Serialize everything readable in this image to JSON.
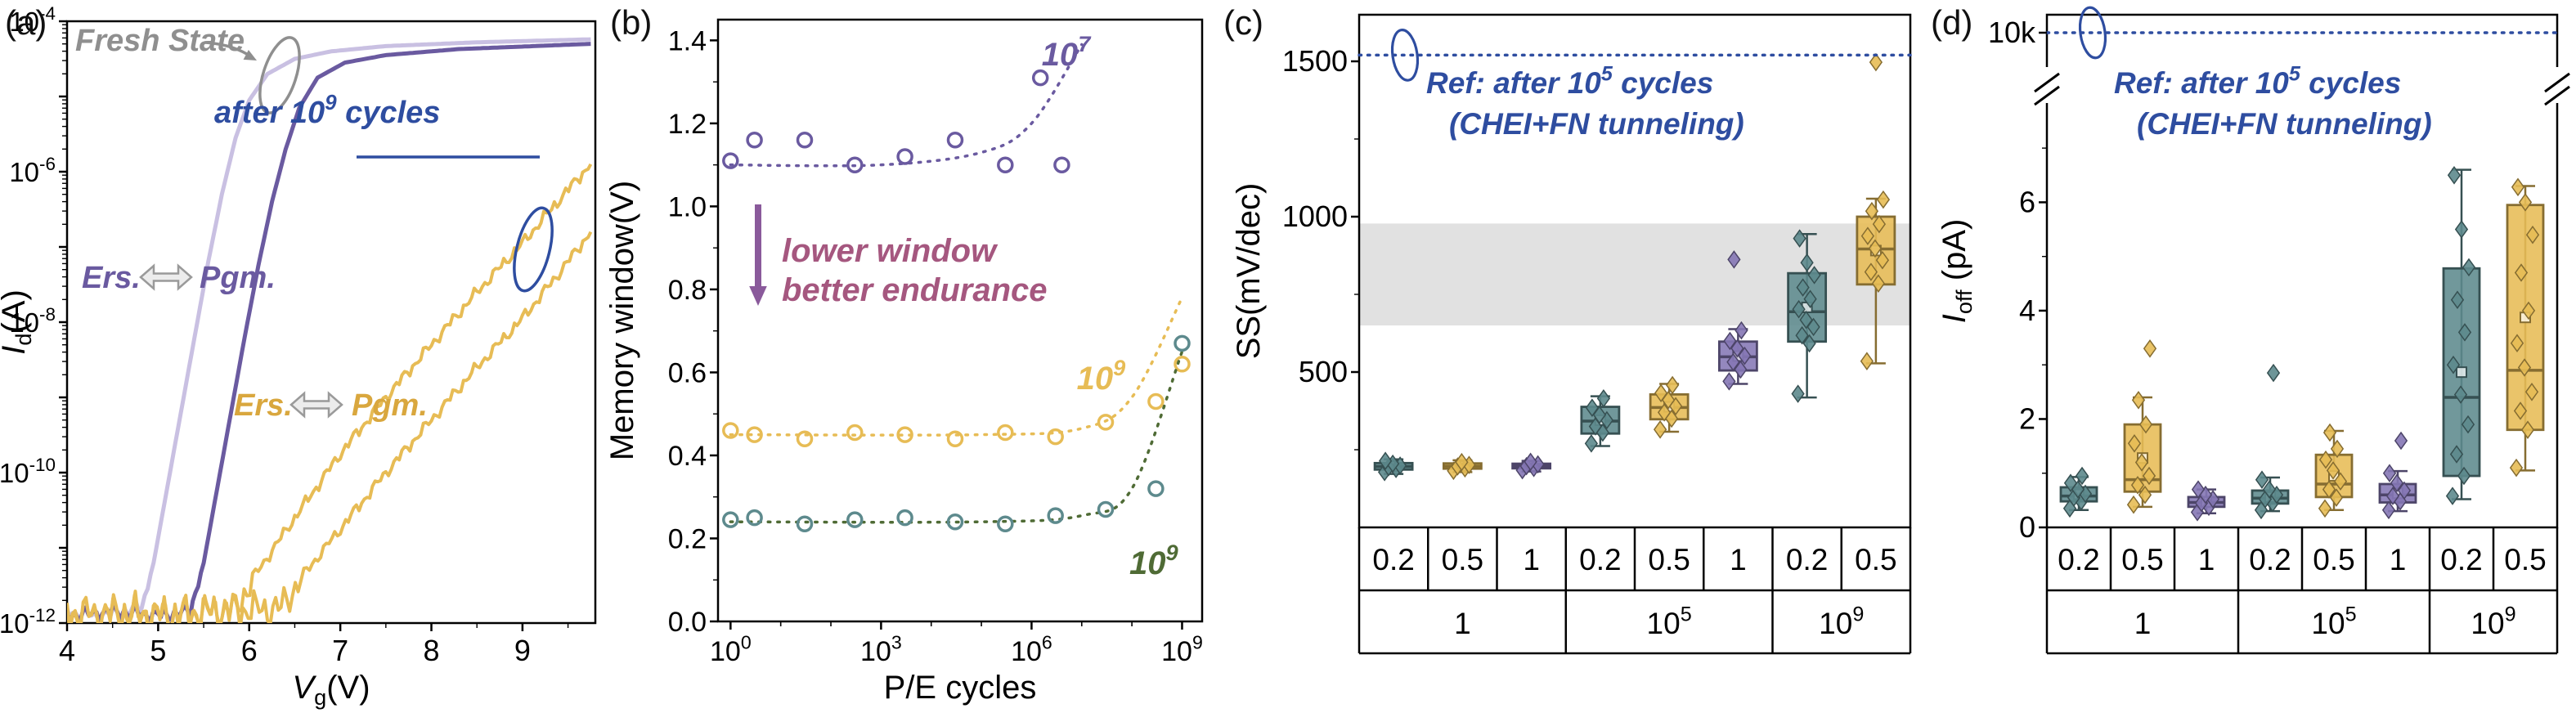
{
  "colors": {
    "purple_light": "#c9c0e2",
    "purple": "#6a5aa0",
    "purple_box": "#8577b5",
    "yellow": "#e7bc55",
    "yellow_dark": "#d9a73e",
    "teal": "#5d8a8d",
    "green_dark": "#4f6b35",
    "magenta": "#a5577f",
    "arrow_purple": "#8a5a9b",
    "blue": "#2e4da0",
    "gray": "#8f8f8f",
    "band_gray": "#dcdcdc"
  },
  "chart_data": [
    {
      "id": "a",
      "type": "line",
      "label": "(a)",
      "xlabel": "*V*_{g}(V)",
      "ylabel": "*I*_{d}(A)",
      "xlim": [
        4,
        9.8
      ],
      "xticks": [
        4,
        5,
        6,
        7,
        8,
        9
      ],
      "ylog_range": [
        -12,
        -4
      ],
      "yticks_labeled": [
        -4,
        -6,
        -8,
        -10,
        -12
      ],
      "series": [
        {
          "name": "fresh-erase",
          "color": "purple_light",
          "width": 5,
          "noise": "low",
          "points": [
            [
              4.0,
              -11.85
            ],
            [
              4.3,
              -11.9
            ],
            [
              4.6,
              -11.85
            ],
            [
              4.82,
              -11.8
            ],
            [
              4.95,
              -11.2
            ],
            [
              5.1,
              -10.2
            ],
            [
              5.25,
              -9.2
            ],
            [
              5.4,
              -8.2
            ],
            [
              5.55,
              -7.2
            ],
            [
              5.7,
              -6.3
            ],
            [
              5.85,
              -5.55
            ],
            [
              6.0,
              -5.05
            ],
            [
              6.2,
              -4.7
            ],
            [
              6.5,
              -4.5
            ],
            [
              6.9,
              -4.4
            ],
            [
              7.5,
              -4.33
            ],
            [
              8.5,
              -4.28
            ],
            [
              9.75,
              -4.24
            ]
          ]
        },
        {
          "name": "fresh-program",
          "color": "purple",
          "width": 5,
          "noise": "low",
          "points": [
            [
              4.0,
              -11.9
            ],
            [
              4.5,
              -11.85
            ],
            [
              5.0,
              -11.9
            ],
            [
              5.35,
              -11.85
            ],
            [
              5.5,
              -11.2
            ],
            [
              5.65,
              -10.2
            ],
            [
              5.8,
              -9.2
            ],
            [
              5.95,
              -8.2
            ],
            [
              6.1,
              -7.25
            ],
            [
              6.25,
              -6.4
            ],
            [
              6.4,
              -5.7
            ],
            [
              6.55,
              -5.15
            ],
            [
              6.75,
              -4.75
            ],
            [
              7.05,
              -4.55
            ],
            [
              7.5,
              -4.45
            ],
            [
              8.3,
              -4.37
            ],
            [
              9.75,
              -4.3
            ]
          ]
        },
        {
          "name": "after-1e9-erase",
          "color": "yellow",
          "width": 4,
          "noise": "high",
          "points": [
            [
              4.0,
              -11.9
            ],
            [
              4.6,
              -11.85
            ],
            [
              5.2,
              -11.9
            ],
            [
              5.85,
              -11.8
            ],
            [
              6.1,
              -11.3
            ],
            [
              6.5,
              -10.6
            ],
            [
              7.0,
              -9.75
            ],
            [
              7.5,
              -9.0
            ],
            [
              8.0,
              -8.3
            ],
            [
              8.5,
              -7.6
            ],
            [
              9.0,
              -6.95
            ],
            [
              9.35,
              -6.45
            ],
            [
              9.6,
              -6.1
            ],
            [
              9.75,
              -5.9
            ]
          ]
        },
        {
          "name": "after-1e9-program",
          "color": "yellow",
          "width": 4,
          "noise": "high",
          "points": [
            [
              4.0,
              -11.85
            ],
            [
              4.8,
              -11.9
            ],
            [
              5.6,
              -11.85
            ],
            [
              6.35,
              -11.8
            ],
            [
              6.6,
              -11.35
            ],
            [
              7.0,
              -10.75
            ],
            [
              7.5,
              -10.0
            ],
            [
              8.0,
              -9.3
            ],
            [
              8.5,
              -8.6
            ],
            [
              9.0,
              -7.95
            ],
            [
              9.4,
              -7.35
            ],
            [
              9.75,
              -6.8
            ]
          ]
        }
      ],
      "annotations": {
        "fresh_label": "Fresh State",
        "cycled_label": "after 10^{9} cycles",
        "fresh_ers": "Ers.",
        "fresh_pgm": "Pgm.",
        "cycled_ers": "Ers.",
        "cycled_pgm": "Pgm."
      }
    },
    {
      "id": "b",
      "type": "scatter",
      "label": "(b)",
      "xlabel": "P/E cycles",
      "ylabel": "Memory window(V)",
      "xlog_decades": [
        0,
        9
      ],
      "xticks_labeled_decades": [
        0,
        3,
        6,
        9
      ],
      "ylim": [
        0,
        1.45
      ],
      "yticks": [
        0.0,
        0.2,
        0.4,
        0.6,
        0.8,
        1.0,
        1.2,
        1.4
      ],
      "series": [
        {
          "name": "window-high",
          "color": "purple",
          "label": "10^{7}",
          "points": [
            [
              1,
              1.11
            ],
            [
              3,
              1.16
            ],
            [
              30,
              1.16
            ],
            [
              300,
              1.1
            ],
            [
              3000,
              1.12
            ],
            [
              30000,
              1.16
            ],
            [
              300000,
              1.1
            ],
            [
              1500000,
              1.31
            ],
            [
              4000000,
              1.1
            ]
          ],
          "trend": [
            [
              1,
              1.1
            ],
            [
              1000,
              1.1
            ],
            [
              100000,
              1.13
            ],
            [
              1000000,
              1.2
            ],
            [
              10000000,
              1.39
            ]
          ]
        },
        {
          "name": "window-mid",
          "color": "yellow",
          "label": "10^{9}",
          "points": [
            [
              1,
              0.46
            ],
            [
              3,
              0.45
            ],
            [
              30,
              0.44
            ],
            [
              300,
              0.455
            ],
            [
              3000,
              0.45
            ],
            [
              30000,
              0.44
            ],
            [
              300000,
              0.455
            ],
            [
              3000000,
              0.445
            ],
            [
              30000000,
              0.48
            ],
            [
              300000000,
              0.53
            ],
            [
              1000000000,
              0.62
            ]
          ],
          "trend": [
            [
              1,
              0.45
            ],
            [
              100000,
              0.45
            ],
            [
              10000000,
              0.465
            ],
            [
              100000000,
              0.54
            ],
            [
              1000000000,
              0.78
            ]
          ]
        },
        {
          "name": "window-low",
          "color": "teal",
          "label": "10^{9}",
          "label_color": "green_dark",
          "points": [
            [
              1,
              0.245
            ],
            [
              3,
              0.25
            ],
            [
              30,
              0.235
            ],
            [
              300,
              0.245
            ],
            [
              3000,
              0.25
            ],
            [
              30000,
              0.24
            ],
            [
              300000,
              0.235
            ],
            [
              3000000,
              0.255
            ],
            [
              30000000,
              0.27
            ],
            [
              300000000,
              0.32
            ],
            [
              1000000000,
              0.67
            ]
          ],
          "trend": [
            [
              1,
              0.24
            ],
            [
              100000,
              0.24
            ],
            [
              10000000,
              0.255
            ],
            [
              100000000,
              0.32
            ],
            [
              1000000000,
              0.65
            ]
          ]
        }
      ],
      "annotation": {
        "line1": "lower window",
        "line2": "better endurance"
      }
    },
    {
      "id": "c",
      "type": "box",
      "label": "(c)",
      "ylabel": "SS(mV/dec)",
      "ylim": [
        0,
        1650
      ],
      "yticks": [
        500,
        1000,
        1500
      ],
      "yminor": [
        250,
        750,
        1250
      ],
      "band": [
        650,
        978
      ],
      "ref_value": 1520,
      "ref_label_line1": "Ref: after 10^{5} cycles",
      "ref_label_line2": "(CHEI+FN tunneling)",
      "groups": [
        {
          "label": "1",
          "boxes": [
            {
              "x_label": "0.2",
              "color": "teal",
              "whisker_low": 172,
              "q1": 186,
              "median": 196,
              "q3": 207,
              "whisker_high": 219,
              "points": [
                178,
                188,
                194,
                199,
                205,
                214
              ]
            },
            {
              "x_label": "0.5",
              "color": "yellow",
              "whisker_low": 178,
              "q1": 189,
              "median": 197,
              "q3": 206,
              "whisker_high": 216,
              "points": [
                182,
                190,
                196,
                201,
                210
              ]
            },
            {
              "x_label": "1",
              "color": "purple_box",
              "whisker_low": 180,
              "q1": 190,
              "median": 197,
              "q3": 205,
              "whisker_high": 214,
              "points": [
                184,
                191,
                197,
                203,
                211
              ]
            }
          ]
        },
        {
          "label": "10^{5}",
          "boxes": [
            {
              "x_label": "0.2",
              "color": "teal",
              "whisker_low": 262,
              "q1": 302,
              "median": 342,
              "q3": 388,
              "whisker_high": 422,
              "points": [
                270,
                305,
                325,
                345,
                362,
                385,
                415
              ]
            },
            {
              "x_label": "0.5",
              "color": "yellow",
              "whisker_low": 308,
              "q1": 348,
              "median": 386,
              "q3": 428,
              "whisker_high": 462,
              "points": [
                315,
                350,
                370,
                390,
                410,
                432,
                458
              ]
            },
            {
              "x_label": "1",
              "color": "purple_box",
              "whisker_low": 462,
              "q1": 505,
              "median": 549,
              "q3": 598,
              "whisker_high": 638,
              "points": [
                470,
                508,
                532,
                552,
                576,
                600,
                634,
                862
              ]
            }
          ]
        },
        {
          "label": "10^{9}",
          "boxes": [
            {
              "x_label": "0.2",
              "color": "teal",
              "whisker_low": 418,
              "q1": 598,
              "median": 694,
              "q3": 818,
              "whisker_high": 944,
              "points": [
                430,
                592,
                618,
                645,
                668,
                702,
                735,
                772,
                812,
                852,
                930
              ]
            },
            {
              "x_label": "0.5",
              "color": "yellow",
              "whisker_low": 528,
              "q1": 782,
              "median": 896,
              "q3": 1000,
              "whisker_high": 1058,
              "points": [
                535,
                785,
                822,
                860,
                898,
                938,
                976,
                1018,
                1055,
                1497
              ]
            }
          ]
        }
      ]
    },
    {
      "id": "d",
      "type": "box",
      "label": "(d)",
      "ylabel": "*I*_{off} (pA)",
      "ylim": [
        0,
        7.5
      ],
      "yticks": [
        0,
        2,
        4,
        6
      ],
      "yminor": [
        1,
        3,
        5,
        7
      ],
      "broken_axis": true,
      "top_tick_label": "10k",
      "ref_label_line1": "Ref: after 10^{5} cycles",
      "ref_label_line2": "(CHEI+FN tunneling)",
      "groups": [
        {
          "label": "1",
          "boxes": [
            {
              "x_label": "0.2",
              "color": "teal",
              "whisker_low": 0.32,
              "q1": 0.48,
              "median": 0.58,
              "q3": 0.74,
              "whisker_high": 0.93,
              "points": [
                0.35,
                0.48,
                0.55,
                0.62,
                0.7,
                0.82,
                0.95
              ]
            },
            {
              "x_label": "0.5",
              "color": "yellow",
              "whisker_low": 0.38,
              "q1": 0.66,
              "median": 0.88,
              "q3": 1.9,
              "whisker_high": 2.4,
              "points": [
                0.42,
                0.6,
                0.78,
                0.95,
                1.2,
                1.55,
                1.9,
                2.35,
                3.3
              ]
            },
            {
              "x_label": "1",
              "color": "purple_box",
              "whisker_low": 0.26,
              "q1": 0.38,
              "median": 0.46,
              "q3": 0.56,
              "whisker_high": 0.7,
              "points": [
                0.28,
                0.38,
                0.45,
                0.52,
                0.6,
                0.7
              ]
            }
          ]
        },
        {
          "label": "10^{5}",
          "boxes": [
            {
              "x_label": "0.2",
              "color": "teal",
              "whisker_low": 0.3,
              "q1": 0.44,
              "median": 0.54,
              "q3": 0.68,
              "whisker_high": 0.92,
              "points": [
                0.32,
                0.45,
                0.52,
                0.6,
                0.7,
                0.88,
                2.85
              ]
            },
            {
              "x_label": "0.5",
              "color": "yellow",
              "whisker_low": 0.32,
              "q1": 0.56,
              "median": 0.8,
              "q3": 1.34,
              "whisker_high": 1.78,
              "points": [
                0.35,
                0.55,
                0.7,
                0.85,
                1.05,
                1.25,
                1.45,
                1.75
              ]
            },
            {
              "x_label": "1",
              "color": "purple_box",
              "whisker_low": 0.3,
              "q1": 0.46,
              "median": 0.6,
              "q3": 0.8,
              "whisker_high": 1.04,
              "points": [
                0.32,
                0.48,
                0.58,
                0.68,
                0.82,
                1.0,
                1.6
              ]
            }
          ]
        },
        {
          "label": "10^{9}",
          "boxes": [
            {
              "x_label": "0.2",
              "color": "teal",
              "whisker_low": 0.52,
              "q1": 0.95,
              "median": 2.4,
              "q3": 4.78,
              "whisker_high": 6.6,
              "points": [
                0.58,
                0.95,
                1.35,
                1.9,
                2.45,
                3.0,
                3.6,
                4.2,
                4.8,
                5.5,
                6.5
              ]
            },
            {
              "x_label": "0.5",
              "color": "yellow",
              "whisker_low": 1.05,
              "q1": 1.8,
              "median": 2.9,
              "q3": 5.95,
              "whisker_high": 6.3,
              "points": [
                1.1,
                1.8,
                2.15,
                2.5,
                2.95,
                3.4,
                4.0,
                4.7,
                5.4,
                6.0,
                6.28
              ]
            }
          ]
        }
      ]
    }
  ]
}
